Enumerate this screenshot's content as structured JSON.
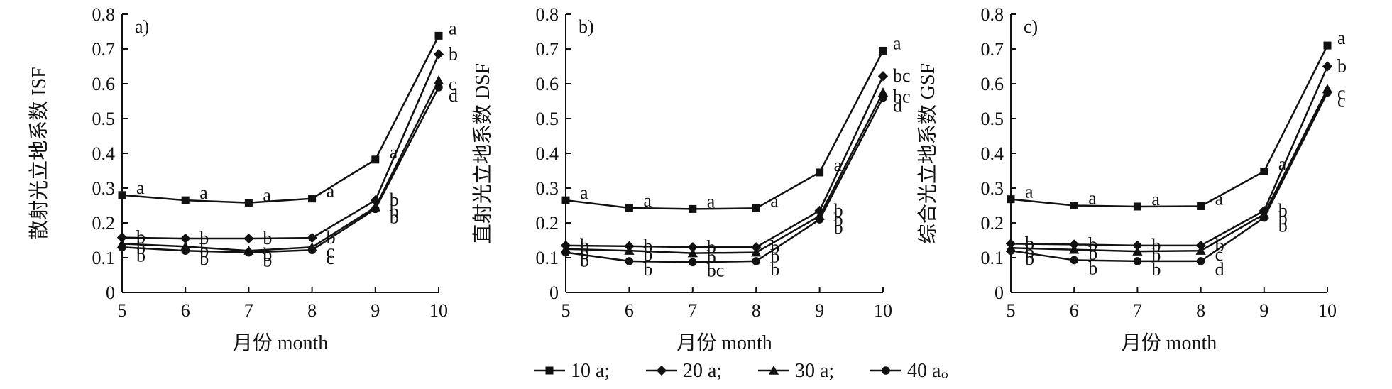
{
  "chart_data": [
    {
      "type": "line",
      "panel_label": "a)",
      "ylabel": "散射光立地系数 ISF",
      "xlabel": "月份 month",
      "x": [
        5,
        6,
        7,
        8,
        9,
        10
      ],
      "ylim": [
        0,
        0.8
      ],
      "xlim": [
        5,
        10
      ],
      "xticks": [
        "5",
        "6",
        "7",
        "8",
        "9",
        "10"
      ],
      "yticks": [
        "0",
        "0.1",
        "0.2",
        "0.3",
        "0.4",
        "0.5",
        "0.6",
        "0.7",
        "0.8"
      ],
      "series": [
        {
          "name": "10 a",
          "values": [
            0.28,
            0.265,
            0.258,
            0.27,
            0.382,
            0.738
          ],
          "letters": [
            "a",
            "a",
            "a",
            "a",
            "a",
            "a"
          ]
        },
        {
          "name": "20 a",
          "values": [
            0.158,
            0.155,
            0.155,
            0.157,
            0.265,
            0.685
          ],
          "letters": [
            "b",
            "b",
            "b",
            "b",
            "b",
            "b"
          ]
        },
        {
          "name": "30 a",
          "values": [
            0.14,
            0.132,
            0.12,
            0.13,
            0.245,
            0.61
          ],
          "letters": [
            "b",
            "b",
            "b",
            "c",
            "b",
            "c"
          ]
        },
        {
          "name": "40 a",
          "values": [
            0.13,
            0.12,
            0.115,
            0.122,
            0.24,
            0.59
          ],
          "letters": [
            "b",
            "b",
            "b",
            "c",
            "b",
            "d"
          ]
        }
      ]
    },
    {
      "type": "line",
      "panel_label": "b)",
      "ylabel": "直射光立地系数 DSF",
      "xlabel": "月份 month",
      "x": [
        5,
        6,
        7,
        8,
        9,
        10
      ],
      "ylim": [
        0,
        0.8
      ],
      "xlim": [
        5,
        10
      ],
      "xticks": [
        "5",
        "6",
        "7",
        "8",
        "9",
        "10"
      ],
      "yticks": [
        "0",
        "0.1",
        "0.2",
        "0.3",
        "0.4",
        "0.5",
        "0.6",
        "0.7",
        "0.8"
      ],
      "series": [
        {
          "name": "10 a",
          "values": [
            0.265,
            0.243,
            0.24,
            0.242,
            0.345,
            0.695
          ],
          "letters": [
            "a",
            "a",
            "a",
            "a",
            "a",
            "a"
          ]
        },
        {
          "name": "20 a",
          "values": [
            0.135,
            0.133,
            0.13,
            0.13,
            0.235,
            0.622
          ],
          "letters": [
            "b",
            "b",
            "b",
            "b",
            "b",
            "bc"
          ]
        },
        {
          "name": "30 a",
          "values": [
            0.125,
            0.12,
            0.113,
            0.115,
            0.22,
            0.575
          ],
          "letters": [
            "b",
            "b",
            "b",
            "b",
            "b",
            "bc"
          ]
        },
        {
          "name": "40 a",
          "values": [
            0.115,
            0.09,
            0.087,
            0.09,
            0.21,
            0.56
          ],
          "letters": [
            "b",
            "b",
            "bc",
            "b",
            "b",
            "d"
          ]
        }
      ]
    },
    {
      "type": "line",
      "panel_label": "c)",
      "ylabel": "综合光立地系数 GSF",
      "xlabel": "月份 month",
      "x": [
        5,
        6,
        7,
        8,
        9,
        10
      ],
      "ylim": [
        0,
        0.8
      ],
      "xlim": [
        5,
        10
      ],
      "xticks": [
        "5",
        "6",
        "7",
        "8",
        "9",
        "10"
      ],
      "yticks": [
        "0",
        "0.1",
        "0.2",
        "0.3",
        "0.4",
        "0.5",
        "0.6",
        "0.7",
        "0.8"
      ],
      "series": [
        {
          "name": "10 a",
          "values": [
            0.268,
            0.25,
            0.247,
            0.248,
            0.348,
            0.71
          ],
          "letters": [
            "a",
            "a",
            "a",
            "a",
            "a",
            "a"
          ]
        },
        {
          "name": "20 a",
          "values": [
            0.14,
            0.138,
            0.135,
            0.135,
            0.235,
            0.65
          ],
          "letters": [
            "b",
            "b",
            "b",
            "b",
            "b",
            "b"
          ]
        },
        {
          "name": "30 a",
          "values": [
            0.128,
            0.123,
            0.118,
            0.12,
            0.225,
            0.585
          ],
          "letters": [
            "b",
            "b",
            "b",
            "c",
            "b",
            "c"
          ]
        },
        {
          "name": "40 a",
          "values": [
            0.12,
            0.093,
            0.09,
            0.09,
            0.215,
            0.575
          ],
          "letters": [
            "b",
            "b",
            "b",
            "d",
            "b",
            "c"
          ]
        }
      ]
    }
  ],
  "legend": {
    "position": "bottom-center",
    "items": [
      {
        "label": "10 a;",
        "marker": "square"
      },
      {
        "label": "20 a;",
        "marker": "diamond"
      },
      {
        "label": "30 a;",
        "marker": "triangle"
      },
      {
        "label": "40 a。",
        "marker": "circle"
      }
    ]
  }
}
